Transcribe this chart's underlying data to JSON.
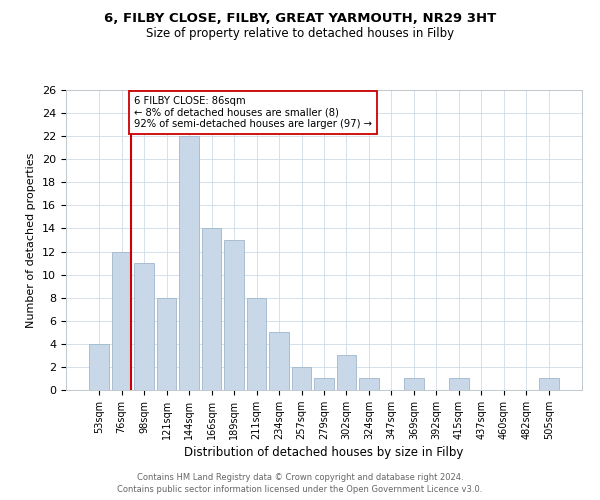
{
  "title1": "6, FILBY CLOSE, FILBY, GREAT YARMOUTH, NR29 3HT",
  "title2": "Size of property relative to detached houses in Filby",
  "xlabel": "Distribution of detached houses by size in Filby",
  "ylabel": "Number of detached properties",
  "bar_labels": [
    "53sqm",
    "76sqm",
    "98sqm",
    "121sqm",
    "144sqm",
    "166sqm",
    "189sqm",
    "211sqm",
    "234sqm",
    "257sqm",
    "279sqm",
    "302sqm",
    "324sqm",
    "347sqm",
    "369sqm",
    "392sqm",
    "415sqm",
    "437sqm",
    "460sqm",
    "482sqm",
    "505sqm"
  ],
  "bar_values": [
    4,
    12,
    11,
    8,
    22,
    14,
    13,
    8,
    5,
    2,
    1,
    3,
    1,
    0,
    1,
    0,
    1,
    0,
    0,
    0,
    1
  ],
  "bar_color": "#c8d8e8",
  "bar_edge_color": "#a0b8cc",
  "subject_line_color": "#cc0000",
  "annotation_line1": "6 FILBY CLOSE: 86sqm",
  "annotation_line2": "← 8% of detached houses are smaller (8)",
  "annotation_line3": "92% of semi-detached houses are larger (97) →",
  "annotation_box_color": "#ffffff",
  "annotation_box_edge_color": "#cc0000",
  "ylim": [
    0,
    26
  ],
  "yticks": [
    0,
    2,
    4,
    6,
    8,
    10,
    12,
    14,
    16,
    18,
    20,
    22,
    24,
    26
  ],
  "footer1": "Contains HM Land Registry data © Crown copyright and database right 2024.",
  "footer2": "Contains public sector information licensed under the Open Government Licence v3.0.",
  "bg_color": "#ffffff",
  "grid_color": "#d0dce8"
}
